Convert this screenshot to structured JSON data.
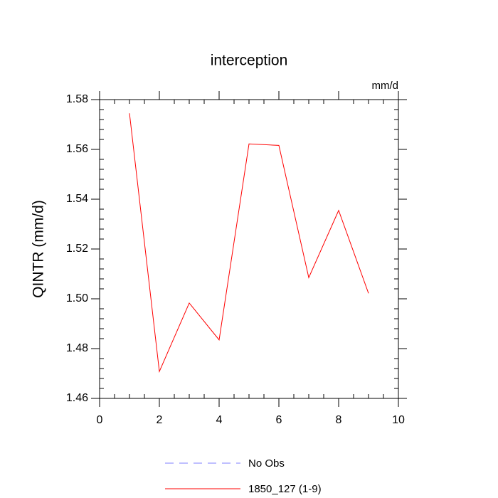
{
  "chart_data": {
    "type": "line",
    "title": "interception",
    "units_label": "mm/d",
    "y_label": "QINTR  (mm/d)",
    "x": [
      1,
      2,
      3,
      4,
      5,
      6,
      7,
      8,
      9
    ],
    "series": [
      {
        "name": "No Obs",
        "color": "#8080ff",
        "dashed": true,
        "values": [
          null,
          null,
          null,
          null,
          null,
          null,
          null,
          null,
          null
        ]
      },
      {
        "name": "1850_127 (1-9)",
        "color": "#ff0000",
        "dashed": false,
        "values": [
          1.5745,
          1.4708,
          1.4983,
          1.4835,
          1.5622,
          1.5616,
          1.5085,
          1.5355,
          1.5022
        ]
      }
    ],
    "xlim": [
      0,
      10
    ],
    "xticks": [
      0,
      2,
      4,
      6,
      8,
      10
    ],
    "ylim": [
      1.46,
      1.58
    ],
    "yticks": [
      {
        "value": 1.46,
        "label": "1.46"
      },
      {
        "value": 1.48,
        "label": "1.48"
      },
      {
        "value": 1.5,
        "label": "1.50"
      },
      {
        "value": 1.52,
        "label": "1.52"
      },
      {
        "value": 1.54,
        "label": "1.54"
      },
      {
        "value": 1.56,
        "label": "1.56"
      },
      {
        "value": 1.58,
        "label": "1.58"
      }
    ],
    "grid": false
  }
}
